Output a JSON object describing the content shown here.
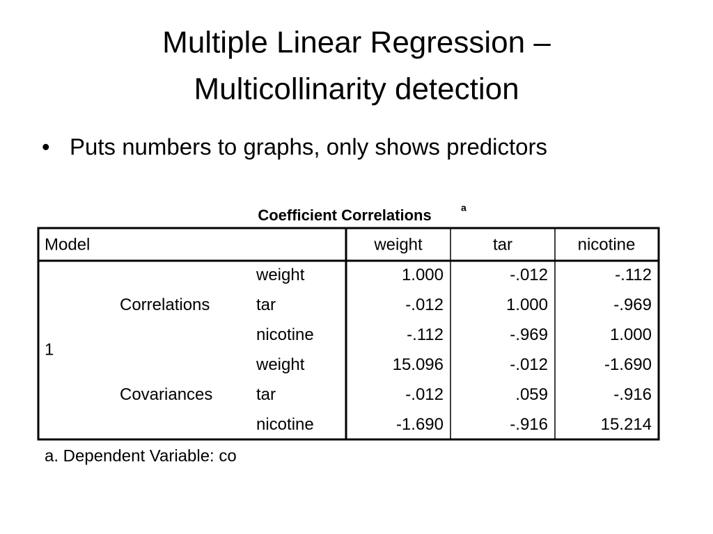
{
  "title": {
    "lines": [
      "Multiple Linear Regression –",
      "Multicollinarity detection"
    ]
  },
  "bullets": [
    "Puts numbers to graphs, only shows predictors"
  ],
  "table": {
    "caption": "Coefficient Correlations",
    "caption_note": "a",
    "header": [
      "Model",
      "weight",
      "tar",
      "nicotine"
    ],
    "model": "1",
    "groups": [
      {
        "name": "Correlations",
        "rows": [
          [
            "weight",
            "1.000",
            "-.012",
            "-.112"
          ],
          [
            "tar",
            "-.012",
            "1.000",
            "-.969"
          ],
          [
            "nicotine",
            "-.112",
            "-.969",
            "1.000"
          ]
        ]
      },
      {
        "name": "Covariances",
        "rows": [
          [
            "weight",
            "15.096",
            "-.012",
            "-1.690"
          ],
          [
            "tar",
            "-.012",
            ".059",
            "-.916"
          ],
          [
            "nicotine",
            "-1.690",
            "-.916",
            "15.214"
          ]
        ]
      }
    ],
    "footnote": "a. Dependent Variable: co"
  }
}
